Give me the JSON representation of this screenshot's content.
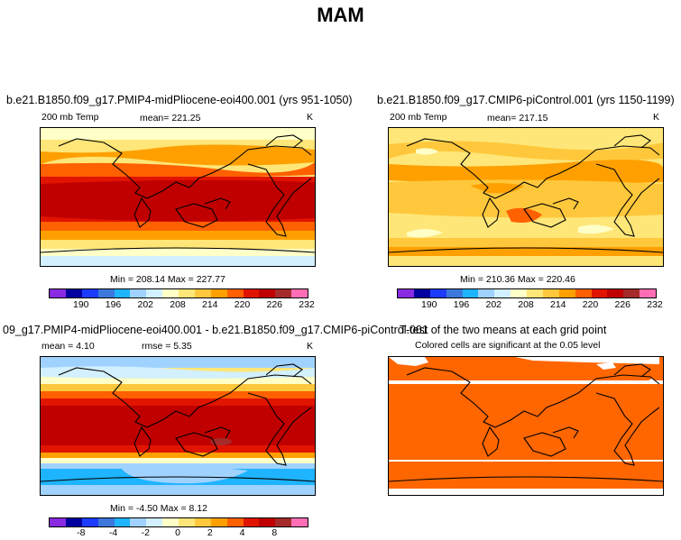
{
  "figure": {
    "title": "MAM"
  },
  "panels": [
    {
      "title": "b.e21.B1850.f09_g17.PMIP4-midPliocene-eoi400.001 (yrs 951-1050)",
      "left_label": "200 mb Temp",
      "center_label": "mean=  221.25",
      "units": "K",
      "stats": "Min = 208.14  Max = 227.77",
      "colorbar_ticks": [
        "190",
        "196",
        "202",
        "208",
        "214",
        "220",
        "226",
        "232"
      ]
    },
    {
      "title": "b.e21.B1850.f09_g17.CMIP6-piControl.001 (yrs 1150-1199)",
      "left_label": "200 mb Temp",
      "center_label": "mean=  217.15",
      "units": "K",
      "stats": "Min = 210.36  Max = 220.46",
      "colorbar_ticks": [
        "190",
        "196",
        "202",
        "208",
        "214",
        "220",
        "226",
        "232"
      ]
    },
    {
      "title": "09_g17.PMIP4-midPliocene-eoi400.001 - b.e21.B1850.f09_g17.CMIP6-piControl.001",
      "mean_label": "mean =    4.10",
      "rmse_label": "rmse =    5.35",
      "units": "K",
      "stats": "Min =   -4.50  Max =    8.12",
      "colorbar_ticks": [
        "-8",
        "-4",
        "-2",
        "0",
        "2",
        "4",
        "8"
      ]
    },
    {
      "title": "T-test of the two means at each grid point",
      "subtitle": "Colored cells are significant at the 0.05 level"
    }
  ],
  "colors": {
    "palette": [
      "#8a2be2",
      "#0000a0",
      "#1e3cff",
      "#3c78dc",
      "#1eb4ff",
      "#a0d2ff",
      "#d2f0ff",
      "#ffffc8",
      "#ffe678",
      "#ffc83c",
      "#ffa000",
      "#ff6000",
      "#e11400",
      "#c00000",
      "#a52a2a",
      "#ff6eb4"
    ],
    "significant": "#ff6600"
  }
}
